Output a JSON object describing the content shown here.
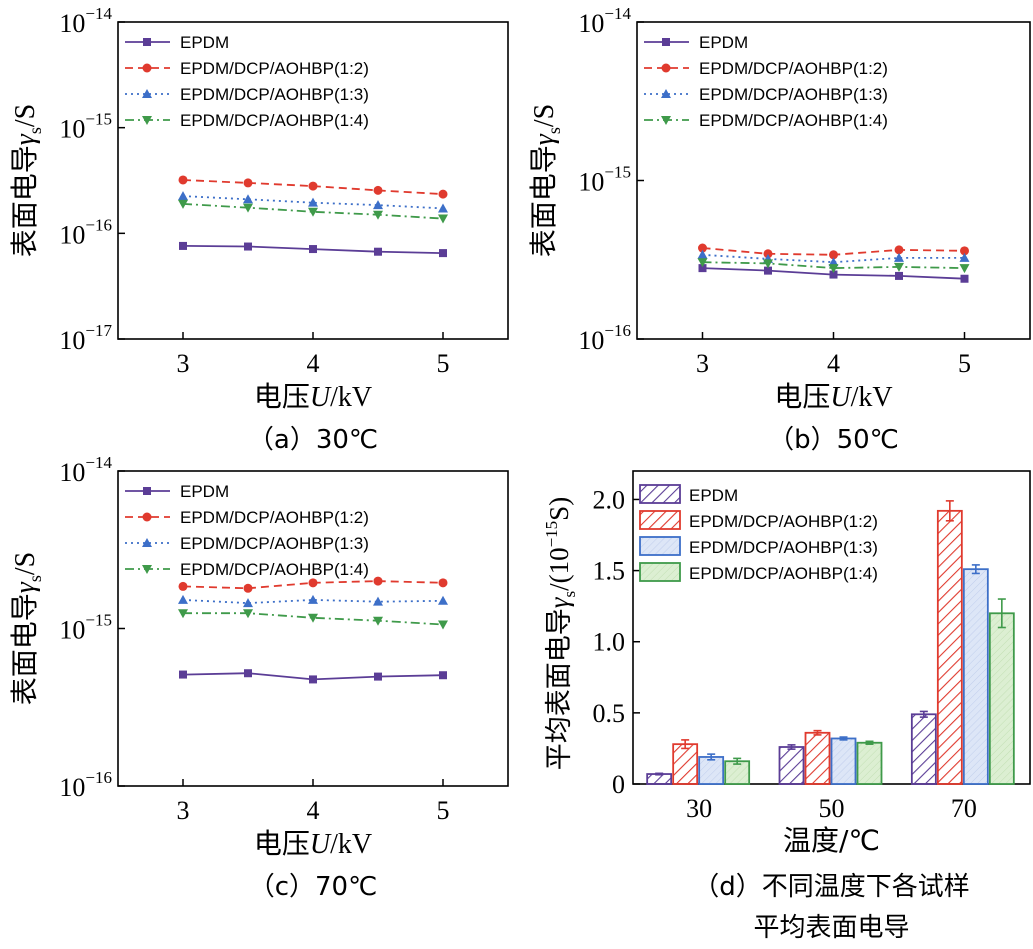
{
  "colors": {
    "epdm": "#5b3d96",
    "r12": "#e03a2e",
    "r13": "#3d6fc8",
    "r14": "#3f9a4a",
    "fill_r13": "#dde6f7",
    "fill_r14": "#dcefd2"
  },
  "chart_data": [
    {
      "id": "a",
      "type": "line",
      "caption": "（a）30℃",
      "xlabel_prefix": "电压",
      "xlabel_var": "U",
      "xlabel_suffix": "/kV",
      "ylabel_main": "表面电导",
      "ylabel_var": "γ",
      "ylabel_sub": "s",
      "ylabel_suffix": "/S",
      "yscale": "log",
      "ylim": [
        1e-17,
        1e-14
      ],
      "xlim": [
        2.5,
        5.5
      ],
      "xticks": [
        "3",
        "4",
        "5"
      ],
      "yticks": [
        {
          "base": "10",
          "exp": "−17"
        },
        {
          "base": "10",
          "exp": "−16"
        },
        {
          "base": "10",
          "exp": "−15"
        },
        {
          "base": "10",
          "exp": "−14"
        }
      ],
      "x": [
        3,
        3.5,
        4,
        4.5,
        5
      ],
      "series": [
        {
          "name": "EPDM",
          "values": [
            7.6e-17,
            7.5e-17,
            7.1e-17,
            6.7e-17,
            6.5e-17
          ]
        },
        {
          "name": "EPDM/DCP/AOHBP(1:2)",
          "values": [
            3.2e-16,
            3e-16,
            2.8e-16,
            2.55e-16,
            2.35e-16
          ]
        },
        {
          "name": "EPDM/DCP/AOHBP(1:3)",
          "values": [
            2.25e-16,
            2.1e-16,
            1.95e-16,
            1.85e-16,
            1.72e-16
          ]
        },
        {
          "name": "EPDM/DCP/AOHBP(1:4)",
          "values": [
            1.9e-16,
            1.75e-16,
            1.6e-16,
            1.5e-16,
            1.38e-16
          ]
        }
      ]
    },
    {
      "id": "b",
      "type": "line",
      "caption": "（b）50℃",
      "xlabel_prefix": "电压",
      "xlabel_var": "U",
      "xlabel_suffix": "/kV",
      "ylabel_main": "表面电导",
      "ylabel_var": "γ",
      "ylabel_sub": "s",
      "ylabel_suffix": "/S",
      "yscale": "log",
      "ylim": [
        1e-16,
        1e-14
      ],
      "xlim": [
        2.5,
        5.5
      ],
      "xticks": [
        "3",
        "4",
        "5"
      ],
      "yticks": [
        {
          "base": "10",
          "exp": "−16"
        },
        {
          "base": "10",
          "exp": "−15"
        },
        {
          "base": "10",
          "exp": "−14"
        }
      ],
      "x": [
        3,
        3.5,
        4,
        4.5,
        5
      ],
      "series": [
        {
          "name": "EPDM",
          "values": [
            2.8e-16,
            2.7e-16,
            2.55e-16,
            2.5e-16,
            2.4e-16
          ]
        },
        {
          "name": "EPDM/DCP/AOHBP(1:2)",
          "values": [
            3.75e-16,
            3.45e-16,
            3.4e-16,
            3.65e-16,
            3.6e-16
          ]
        },
        {
          "name": "EPDM/DCP/AOHBP(1:3)",
          "values": [
            3.4e-16,
            3.2e-16,
            3.05e-16,
            3.25e-16,
            3.25e-16
          ]
        },
        {
          "name": "EPDM/DCP/AOHBP(1:4)",
          "values": [
            3.05e-16,
            3e-16,
            2.8e-16,
            2.85e-16,
            2.8e-16
          ]
        }
      ]
    },
    {
      "id": "c",
      "type": "line",
      "caption": "（c）70℃",
      "xlabel_prefix": "电压",
      "xlabel_var": "U",
      "xlabel_suffix": "/kV",
      "ylabel_main": "表面电导",
      "ylabel_var": "γ",
      "ylabel_sub": "s",
      "ylabel_suffix": "/S",
      "yscale": "log",
      "ylim": [
        1e-16,
        1e-14
      ],
      "xlim": [
        2.5,
        5.5
      ],
      "xticks": [
        "3",
        "4",
        "5"
      ],
      "yticks": [
        {
          "base": "10",
          "exp": "−16"
        },
        {
          "base": "10",
          "exp": "−15"
        },
        {
          "base": "10",
          "exp": "−14"
        }
      ],
      "x": [
        3,
        3.5,
        4,
        4.5,
        5
      ],
      "series": [
        {
          "name": "EPDM",
          "values": [
            5.1e-16,
            5.2e-16,
            4.75e-16,
            4.95e-16,
            5.05e-16
          ]
        },
        {
          "name": "EPDM/DCP/AOHBP(1:2)",
          "values": [
            1.85e-15,
            1.8e-15,
            1.95e-15,
            2e-15,
            1.95e-15
          ]
        },
        {
          "name": "EPDM/DCP/AOHBP(1:3)",
          "values": [
            1.52e-15,
            1.45e-15,
            1.52e-15,
            1.48e-15,
            1.5e-15
          ]
        },
        {
          "name": "EPDM/DCP/AOHBP(1:4)",
          "values": [
            1.25e-15,
            1.25e-15,
            1.17e-15,
            1.12e-15,
            1.06e-15
          ]
        }
      ]
    },
    {
      "id": "d",
      "type": "bar",
      "caption_line1": "（d）不同温度下各试样",
      "caption_line2": "平均表面电导",
      "xlabel": "温度/℃",
      "ylabel_main": "平均表面电导",
      "ylabel_var": "γ",
      "ylabel_sub": "s",
      "ylabel_unit_pre": "/(10",
      "ylabel_unit_exp": "−15",
      "ylabel_unit_post": "S)",
      "ylim": [
        0,
        2.2
      ],
      "yticks": [
        "0",
        "0.5",
        "1.0",
        "1.5",
        "2.0"
      ],
      "categories": [
        "30",
        "50",
        "70"
      ],
      "series": [
        {
          "name": "EPDM",
          "values": [
            0.07,
            0.26,
            0.49
          ],
          "errors": [
            0.005,
            0.015,
            0.02
          ]
        },
        {
          "name": "EPDM/DCP/AOHBP(1:2)",
          "values": [
            0.28,
            0.36,
            1.92
          ],
          "errors": [
            0.03,
            0.015,
            0.07
          ]
        },
        {
          "name": "EPDM/DCP/AOHBP(1:3)",
          "values": [
            0.19,
            0.32,
            1.51
          ],
          "errors": [
            0.02,
            0.01,
            0.03
          ]
        },
        {
          "name": "EPDM/DCP/AOHBP(1:4)",
          "values": [
            0.16,
            0.29,
            1.2
          ],
          "errors": [
            0.02,
            0.01,
            0.1
          ]
        }
      ]
    }
  ]
}
